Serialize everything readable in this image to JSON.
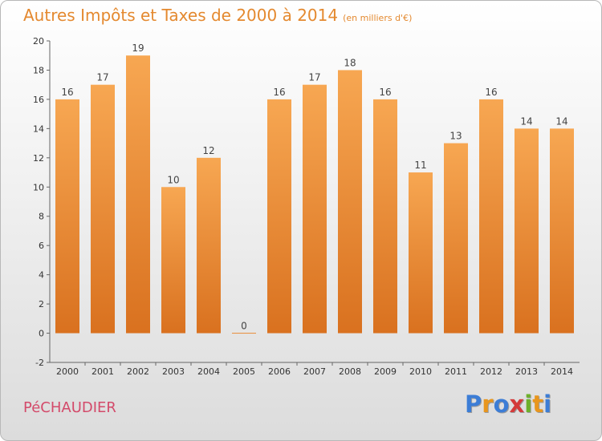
{
  "header": {
    "title": "Autres Impôts et Taxes de 2000 à 2014",
    "unit": "(en milliers d'€)"
  },
  "footer": {
    "town": "PéCHAUDIER",
    "brand_letters": [
      "P",
      "r",
      "o",
      "x",
      "i",
      "t",
      "i"
    ],
    "brand_colors": [
      "#3c7dd6",
      "#e8961e",
      "#3c7dd6",
      "#d43a3a",
      "#6cb02a",
      "#e8961e",
      "#3c7dd6"
    ]
  },
  "chart_data": {
    "type": "bar",
    "title": "Autres Impôts et Taxes de 2000 à 2014",
    "unit": "(en milliers d'€)",
    "categories": [
      "2000",
      "2001",
      "2002",
      "2003",
      "2004",
      "2005",
      "2006",
      "2007",
      "2008",
      "2009",
      "2010",
      "2011",
      "2012",
      "2013",
      "2014"
    ],
    "values": [
      16,
      17,
      19,
      10,
      12,
      0,
      16,
      17,
      18,
      16,
      11,
      13,
      16,
      14,
      14
    ],
    "ylim": [
      -2,
      20
    ],
    "yticks": [
      -2,
      0,
      2,
      4,
      6,
      8,
      10,
      12,
      14,
      16,
      18,
      20
    ],
    "grid": false,
    "bar_color_top": "#f7a752",
    "bar_color_bottom": "#d9711f"
  }
}
